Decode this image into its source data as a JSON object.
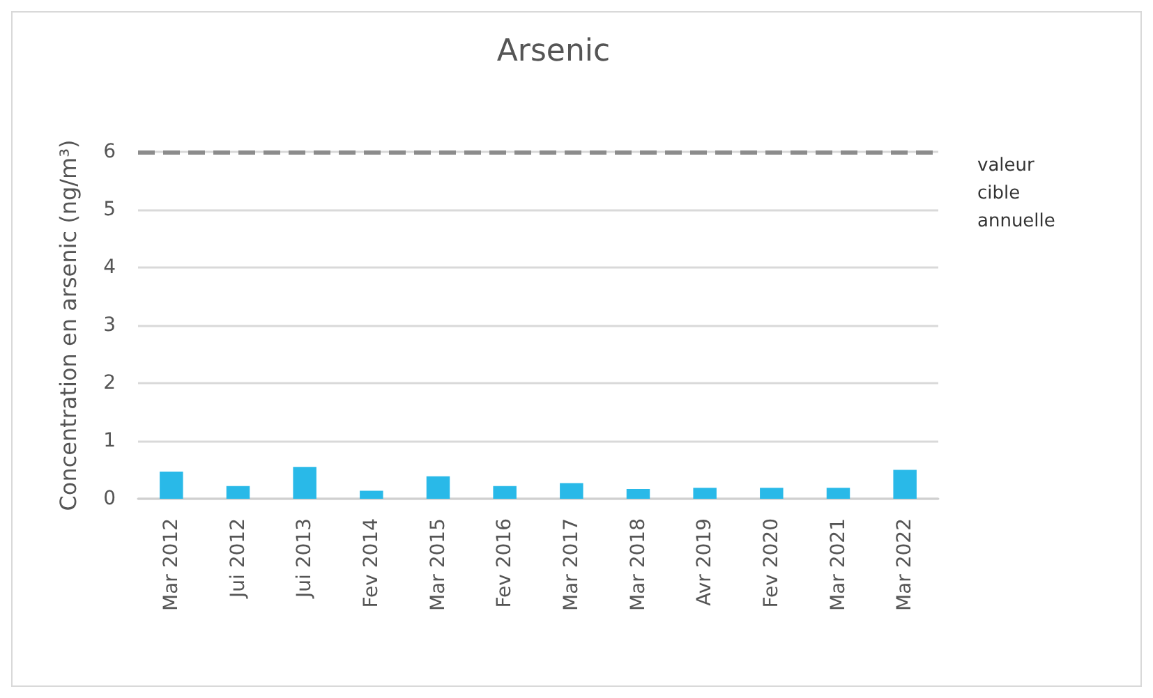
{
  "chart_data": {
    "type": "bar",
    "title": "Arsenic",
    "ylabel": "Concentration en arsenic (ng/m³)",
    "categories": [
      "Mar 2012",
      "Jui 2012",
      "Jui 2013",
      "Fev 2014",
      "Mar 2015",
      "Fev 2016",
      "Mar 2017",
      "Mar 2018",
      "Avr 2019",
      "Fev 2020",
      "Mar 2021",
      "Mar 2022"
    ],
    "values": [
      0.47,
      0.22,
      0.55,
      0.14,
      0.39,
      0.22,
      0.27,
      0.17,
      0.19,
      0.19,
      0.19,
      0.5
    ],
    "color": "#29b9e8",
    "ylim": [
      0,
      6
    ],
    "yticks": [
      0,
      1,
      2,
      3,
      4,
      5,
      6
    ],
    "grid": "y",
    "ref_lines": [
      {
        "axis": "y",
        "value": 6,
        "label": "valeur cible annuelle",
        "color": "#8c8c8c",
        "line_style": "dashed"
      }
    ]
  }
}
